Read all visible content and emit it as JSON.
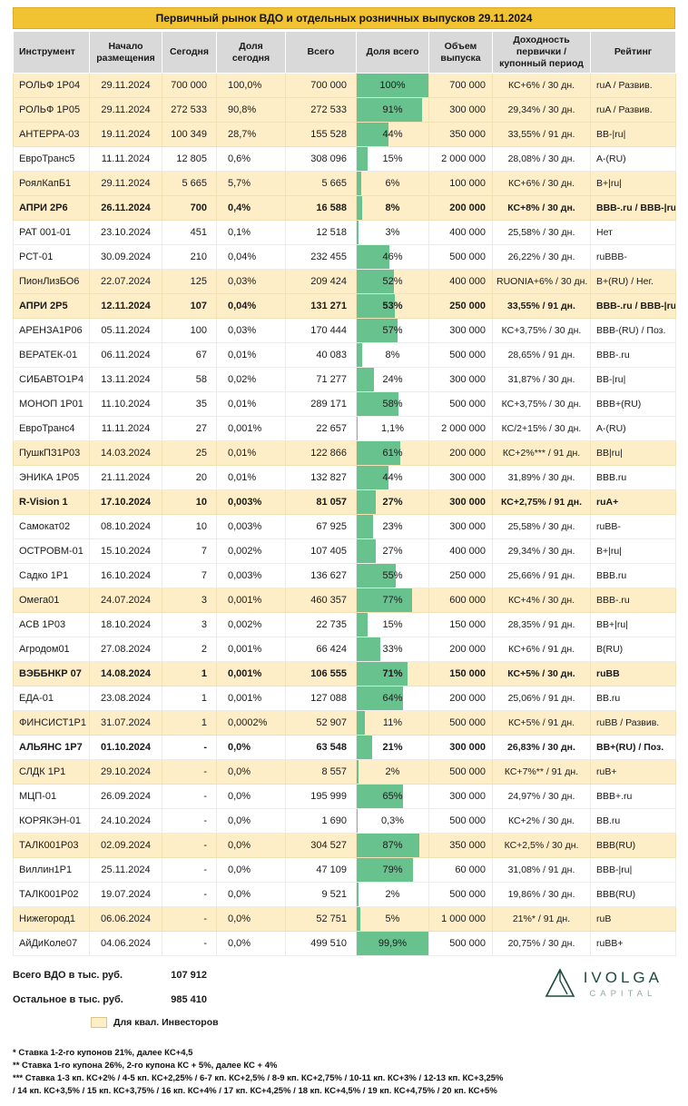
{
  "title": "Первичный рынок ВДО и отдельных розничных выпусков 29.11.2024",
  "colors": {
    "title_gold": "#F1C232",
    "header_gray": "#D9D9D9",
    "qual_row_cream": "#FDEEC8",
    "bar_green": "#68C28E",
    "logo_green": "#1C4A40"
  },
  "chart_data": {
    "type": "table",
    "title": "Первичный рынок ВДО и отдельных розничных выпусков 29.11.2024",
    "columns": [
      "Инструмент",
      "Начало размещения",
      "Сегодня",
      "Доля сегодня",
      "Всего",
      "Доля всего",
      "Объем выпуска",
      "Доходность первички / купонный период",
      "Рейтинг"
    ],
    "bar_column": "Доля всего",
    "rows": [
      {
        "instrument": "РОЛЬФ 1Р04",
        "start": "29.11.2024",
        "today": "700 000",
        "share_today": "100,0%",
        "total": "700 000",
        "share_total": "100%",
        "pct": 100,
        "volume": "700 000",
        "coupon": "КС+6% / 30 дн.",
        "rating": "ruA / Развив.",
        "qual": true,
        "bold": false
      },
      {
        "instrument": "РОЛЬФ 1Р05",
        "start": "29.11.2024",
        "today": "272 533",
        "share_today": "90,8%",
        "total": "272 533",
        "share_total": "91%",
        "pct": 91,
        "volume": "300 000",
        "coupon": "29,34% / 30 дн.",
        "rating": "ruA / Развив.",
        "qual": true,
        "bold": false
      },
      {
        "instrument": "АНТЕРРА-03",
        "start": "19.11.2024",
        "today": "100 349",
        "share_today": "28,7%",
        "total": "155 528",
        "share_total": "44%",
        "pct": 44,
        "volume": "350 000",
        "coupon": "33,55% / 91 дн.",
        "rating": "BB-|ru|",
        "qual": true,
        "bold": false
      },
      {
        "instrument": "ЕвроТранс5",
        "start": "11.11.2024",
        "today": "12 805",
        "share_today": "0,6%",
        "total": "308 096",
        "share_total": "15%",
        "pct": 15,
        "volume": "2 000 000",
        "coupon": "28,08% / 30 дн.",
        "rating": "A-(RU)",
        "qual": false,
        "bold": false
      },
      {
        "instrument": "РоялКапБ1",
        "start": "29.11.2024",
        "today": "5 665",
        "share_today": "5,7%",
        "total": "5 665",
        "share_total": "6%",
        "pct": 6,
        "volume": "100 000",
        "coupon": "КС+6% / 30 дн.",
        "rating": "B+|ru|",
        "qual": true,
        "bold": false
      },
      {
        "instrument": "АПРИ 2Р6",
        "start": "26.11.2024",
        "today": "700",
        "share_today": "0,4%",
        "total": "16 588",
        "share_total": "8%",
        "pct": 8,
        "volume": "200 000",
        "coupon": "КС+8% / 30 дн.",
        "rating": "BBB-.ru / BBB-|ru|",
        "qual": true,
        "bold": true
      },
      {
        "instrument": "РАТ 001-01",
        "start": "23.10.2024",
        "today": "451",
        "share_today": "0,1%",
        "total": "12 518",
        "share_total": "3%",
        "pct": 3,
        "volume": "400 000",
        "coupon": "25,58% / 30 дн.",
        "rating": "Нет",
        "qual": false,
        "bold": false
      },
      {
        "instrument": "РСТ-01",
        "start": "30.09.2024",
        "today": "210",
        "share_today": "0,04%",
        "total": "232 455",
        "share_total": "46%",
        "pct": 46,
        "volume": "500 000",
        "coupon": "26,22% / 30 дн.",
        "rating": "ruBBB-",
        "qual": false,
        "bold": false
      },
      {
        "instrument": "ПионЛизБО6",
        "start": "22.07.2024",
        "today": "125",
        "share_today": "0,03%",
        "total": "209 424",
        "share_total": "52%",
        "pct": 52,
        "volume": "400 000",
        "coupon": "RUONIA+6% / 30 дн.",
        "rating": "B+(RU) / Нег.",
        "qual": true,
        "bold": false
      },
      {
        "instrument": "АПРИ 2Р5",
        "start": "12.11.2024",
        "today": "107",
        "share_today": "0,04%",
        "total": "131 271",
        "share_total": "53%",
        "pct": 53,
        "volume": "250 000",
        "coupon": "33,55% / 91 дн.",
        "rating": "BBB-.ru / BBB-|ru|",
        "qual": true,
        "bold": true
      },
      {
        "instrument": "АРЕНЗА1Р06",
        "start": "05.11.2024",
        "today": "100",
        "share_today": "0,03%",
        "total": "170 444",
        "share_total": "57%",
        "pct": 57,
        "volume": "300 000",
        "coupon": "КС+3,75% / 30 дн.",
        "rating": "BBB-(RU) / Поз.",
        "qual": false,
        "bold": false
      },
      {
        "instrument": "ВЕРАТЕК-01",
        "start": "06.11.2024",
        "today": "67",
        "share_today": "0,01%",
        "total": "40 083",
        "share_total": "8%",
        "pct": 8,
        "volume": "500 000",
        "coupon": "28,65% / 91 дн.",
        "rating": "BBB-.ru",
        "qual": false,
        "bold": false
      },
      {
        "instrument": "СИБАВТО1Р4",
        "start": "13.11.2024",
        "today": "58",
        "share_today": "0,02%",
        "total": "71 277",
        "share_total": "24%",
        "pct": 24,
        "volume": "300 000",
        "coupon": "31,87% / 30 дн.",
        "rating": "BB-|ru|",
        "qual": false,
        "bold": false
      },
      {
        "instrument": "МОНОП 1Р01",
        "start": "11.10.2024",
        "today": "35",
        "share_today": "0,01%",
        "total": "289 171",
        "share_total": "58%",
        "pct": 58,
        "volume": "500 000",
        "coupon": "КС+3,75% / 30 дн.",
        "rating": "BBB+(RU)",
        "qual": false,
        "bold": false
      },
      {
        "instrument": "ЕвроТранс4",
        "start": "11.11.2024",
        "today": "27",
        "share_today": "0,001%",
        "total": "22 657",
        "share_total": "1,1%",
        "pct": 1.1,
        "volume": "2 000 000",
        "coupon": "КС/2+15% / 30 дн.",
        "rating": "A-(RU)",
        "qual": false,
        "bold": false
      },
      {
        "instrument": "ПушкПЗ1Р03",
        "start": "14.03.2024",
        "today": "25",
        "share_today": "0,01%",
        "total": "122 866",
        "share_total": "61%",
        "pct": 61,
        "volume": "200 000",
        "coupon": "КС+2%*** / 91 дн.",
        "rating": "BB|ru|",
        "qual": true,
        "bold": false
      },
      {
        "instrument": "ЭНИКА 1Р05",
        "start": "21.11.2024",
        "today": "20",
        "share_today": "0,01%",
        "total": "132 827",
        "share_total": "44%",
        "pct": 44,
        "volume": "300 000",
        "coupon": "31,89% / 30 дн.",
        "rating": "BBB.ru",
        "qual": false,
        "bold": false
      },
      {
        "instrument": "R-Vision 1",
        "start": "17.10.2024",
        "today": "10",
        "share_today": "0,003%",
        "total": "81 057",
        "share_total": "27%",
        "pct": 27,
        "volume": "300 000",
        "coupon": "КС+2,75% / 91 дн.",
        "rating": "ruA+",
        "qual": true,
        "bold": true
      },
      {
        "instrument": "Самокат02",
        "start": "08.10.2024",
        "today": "10",
        "share_today": "0,003%",
        "total": "67 925",
        "share_total": "23%",
        "pct": 23,
        "volume": "300 000",
        "coupon": "25,58% / 30 дн.",
        "rating": "ruBB-",
        "qual": false,
        "bold": false
      },
      {
        "instrument": "ОСТРОВМ-01",
        "start": "15.10.2024",
        "today": "7",
        "share_today": "0,002%",
        "total": "107 405",
        "share_total": "27%",
        "pct": 27,
        "volume": "400 000",
        "coupon": "29,34% / 30 дн.",
        "rating": "B+|ru|",
        "qual": false,
        "bold": false
      },
      {
        "instrument": "Садко 1Р1",
        "start": "16.10.2024",
        "today": "7",
        "share_today": "0,003%",
        "total": "136 627",
        "share_total": "55%",
        "pct": 55,
        "volume": "250 000",
        "coupon": "25,66% / 91 дн.",
        "rating": "BBB.ru",
        "qual": false,
        "bold": false
      },
      {
        "instrument": "Омега01",
        "start": "24.07.2024",
        "today": "3",
        "share_today": "0,001%",
        "total": "460 357",
        "share_total": "77%",
        "pct": 77,
        "volume": "600 000",
        "coupon": "КС+4% / 30 дн.",
        "rating": "BBB-.ru",
        "qual": true,
        "bold": false
      },
      {
        "instrument": "АСВ 1Р03",
        "start": "18.10.2024",
        "today": "3",
        "share_today": "0,002%",
        "total": "22 735",
        "share_total": "15%",
        "pct": 15,
        "volume": "150 000",
        "coupon": "28,35% / 91 дн.",
        "rating": "BB+|ru|",
        "qual": false,
        "bold": false
      },
      {
        "instrument": "Агродом01",
        "start": "27.08.2024",
        "today": "2",
        "share_today": "0,001%",
        "total": "66 424",
        "share_total": "33%",
        "pct": 33,
        "volume": "200 000",
        "coupon": "КС+6% / 91 дн.",
        "rating": "B(RU)",
        "qual": false,
        "bold": false
      },
      {
        "instrument": "ВЭББНКР 07",
        "start": "14.08.2024",
        "today": "1",
        "share_today": "0,001%",
        "total": "106 555",
        "share_total": "71%",
        "pct": 71,
        "volume": "150 000",
        "coupon": "КС+5% / 30 дн.",
        "rating": "ruBB",
        "qual": true,
        "bold": true
      },
      {
        "instrument": "ЕДА-01",
        "start": "23.08.2024",
        "today": "1",
        "share_today": "0,001%",
        "total": "127 088",
        "share_total": "64%",
        "pct": 64,
        "volume": "200 000",
        "coupon": "25,06% / 91 дн.",
        "rating": "BB.ru",
        "qual": false,
        "bold": false
      },
      {
        "instrument": "ФИНСИСТ1Р1",
        "start": "31.07.2024",
        "today": "1",
        "share_today": "0,0002%",
        "total": "52 907",
        "share_total": "11%",
        "pct": 11,
        "volume": "500 000",
        "coupon": "КС+5% / 91 дн.",
        "rating": "ruBB / Развив.",
        "qual": true,
        "bold": false
      },
      {
        "instrument": "АЛЬЯНС 1Р7",
        "start": "01.10.2024",
        "today": "-",
        "share_today": "0,0%",
        "total": "63 548",
        "share_total": "21%",
        "pct": 21,
        "volume": "300 000",
        "coupon": "26,83% / 30 дн.",
        "rating": "BB+(RU) / Поз.",
        "qual": false,
        "bold": true
      },
      {
        "instrument": "СЛДК 1Р1",
        "start": "29.10.2024",
        "today": "-",
        "share_today": "0,0%",
        "total": "8 557",
        "share_total": "2%",
        "pct": 2,
        "volume": "500 000",
        "coupon": "КС+7%** / 91 дн.",
        "rating": "ruB+",
        "qual": true,
        "bold": false
      },
      {
        "instrument": "МЦП-01",
        "start": "26.09.2024",
        "today": "-",
        "share_today": "0,0%",
        "total": "195 999",
        "share_total": "65%",
        "pct": 65,
        "volume": "300 000",
        "coupon": "24,97% / 30 дн.",
        "rating": "BBB+.ru",
        "qual": false,
        "bold": false
      },
      {
        "instrument": "КОРЯКЭН-01",
        "start": "24.10.2024",
        "today": "-",
        "share_today": "0,0%",
        "total": "1 690",
        "share_total": "0,3%",
        "pct": 0.3,
        "volume": "500 000",
        "coupon": "КС+2% / 30 дн.",
        "rating": "BB.ru",
        "qual": false,
        "bold": false
      },
      {
        "instrument": "ТАЛК001Р03",
        "start": "02.09.2024",
        "today": "-",
        "share_today": "0,0%",
        "total": "304 527",
        "share_total": "87%",
        "pct": 87,
        "volume": "350 000",
        "coupon": "КС+2,5% / 30 дн.",
        "rating": "BBB(RU)",
        "qual": true,
        "bold": false
      },
      {
        "instrument": "Виллин1Р1",
        "start": "25.11.2024",
        "today": "-",
        "share_today": "0,0%",
        "total": "47 109",
        "share_total": "79%",
        "pct": 79,
        "volume": "60 000",
        "coupon": "31,08% / 91 дн.",
        "rating": "BBB-|ru|",
        "qual": false,
        "bold": false
      },
      {
        "instrument": "ТАЛК001Р02",
        "start": "19.07.2024",
        "today": "-",
        "share_today": "0,0%",
        "total": "9 521",
        "share_total": "2%",
        "pct": 2,
        "volume": "500 000",
        "coupon": "19,86% / 30 дн.",
        "rating": "BBB(RU)",
        "qual": false,
        "bold": false
      },
      {
        "instrument": "Нижегород1",
        "start": "06.06.2024",
        "today": "-",
        "share_today": "0,0%",
        "total": "52 751",
        "share_total": "5%",
        "pct": 5,
        "volume": "1 000 000",
        "coupon": "21%* / 91 дн.",
        "rating": "ruB",
        "qual": true,
        "bold": false
      },
      {
        "instrument": "АйДиКоле07",
        "start": "04.06.2024",
        "today": "-",
        "share_today": "0,0%",
        "total": "499 510",
        "share_total": "99,9%",
        "pct": 99.9,
        "volume": "500 000",
        "coupon": "20,75% / 30 дн.",
        "rating": "ruBB+",
        "qual": false,
        "bold": false
      }
    ]
  },
  "summary": {
    "total_vdo_label": "Всего ВДО в тыс. руб.",
    "total_vdo_value": "107 912",
    "other_label": "Остальное в тыс. руб.",
    "other_value": "985 410"
  },
  "legend": {
    "qual_label": "Для квал. Инвесторов"
  },
  "footnotes": [
    "* Ставка 1-2-го купонов 21%, далее КС+4,5",
    "** Ставка 1-го купона 26%, 2-го купона КС + 5%, далее КС + 4%",
    "*** Ставка 1-3 кп. КС+2% / 4-5 кп. КС+2,25% / 6-7 кп. КС+2,5% / 8-9 кп. КС+2,75% / 10-11 кп. КС+3% / 12-13 кп. КС+3,25% / 14 кп. КС+3,5% / 15 кп. КС+3,75% / 16 кп. КС+4% / 17 кп. КС+4,25% / 18 кп. КС+4,5% / 19 кп. КС+4,75% / 20 кп. КС+5%"
  ],
  "logo": {
    "name": "IVOLGA",
    "sub": "CAPITAL"
  }
}
